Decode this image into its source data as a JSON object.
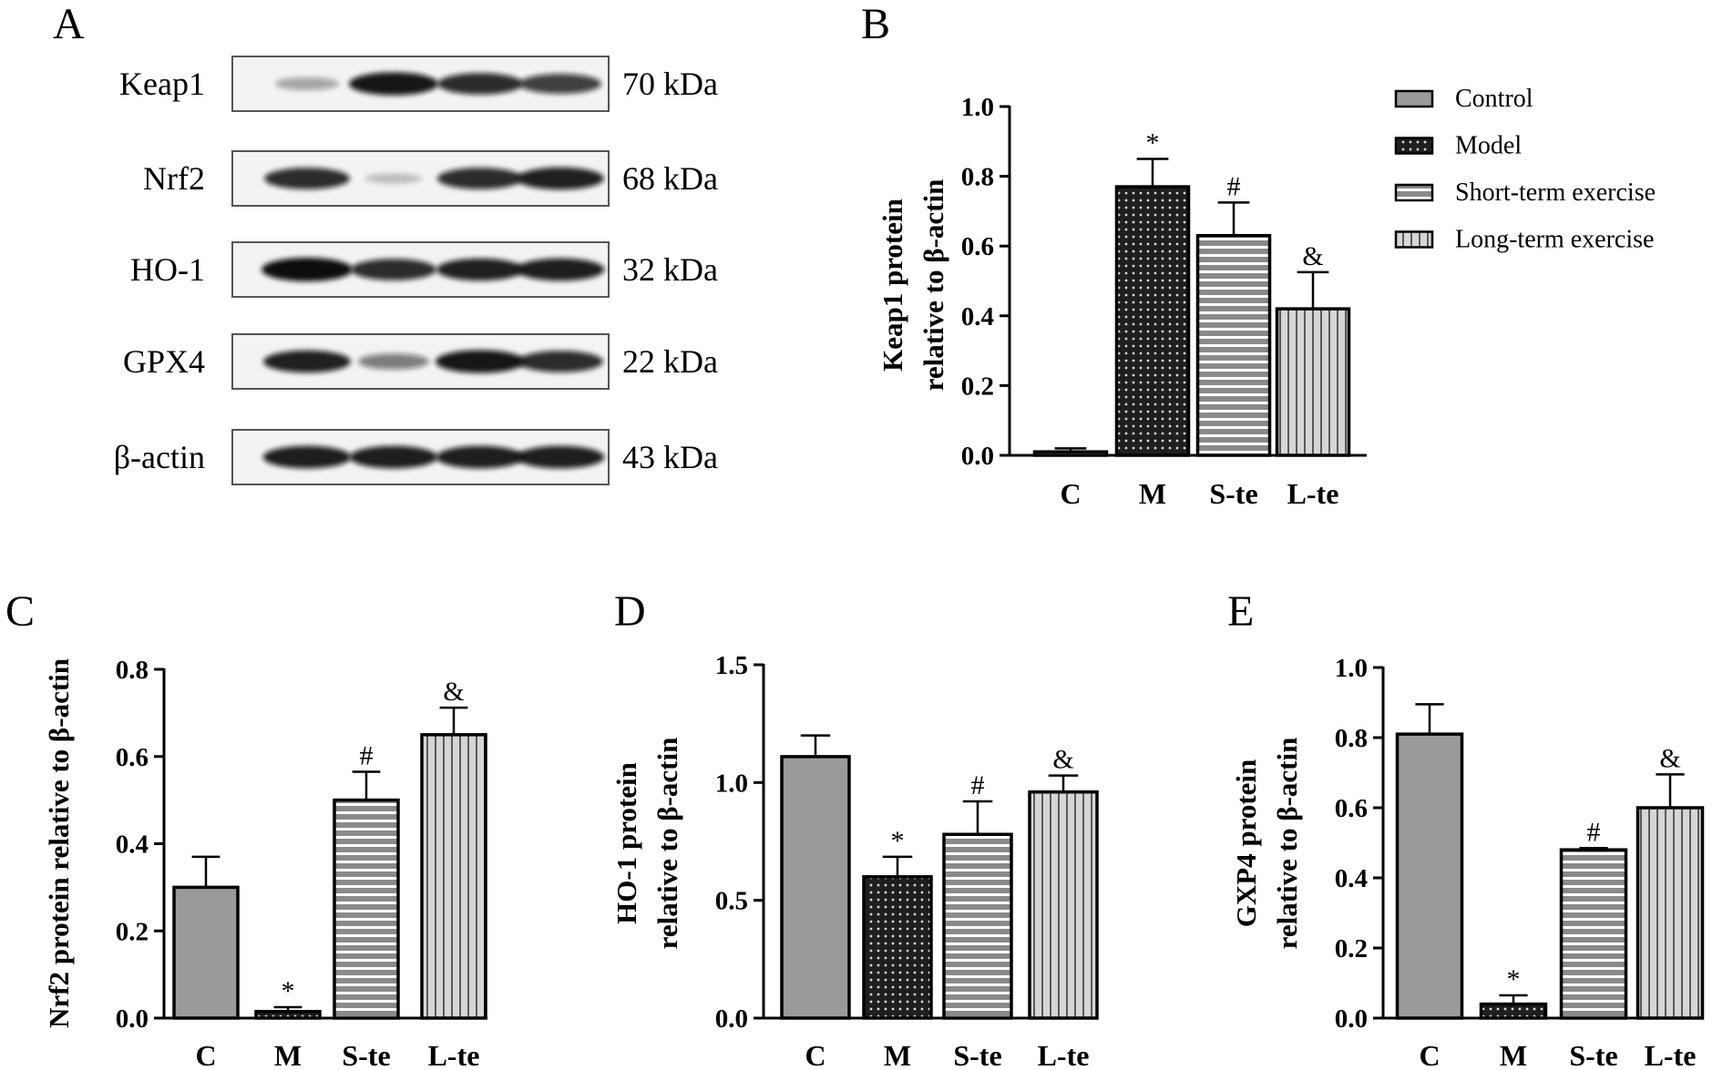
{
  "panels": {
    "A": "A",
    "B": "B",
    "C": "C",
    "D": "D",
    "E": "E"
  },
  "western_blot": {
    "rows": [
      {
        "protein": "Keap1",
        "weight": "70 kDa",
        "intensity": [
          0.25,
          0.95,
          0.85,
          0.75
        ]
      },
      {
        "protein": "Nrf2",
        "weight": "68 kDa",
        "intensity": [
          0.85,
          0.08,
          0.85,
          0.9
        ]
      },
      {
        "protein": "HO-1",
        "weight": "32 kDa",
        "intensity": [
          1.0,
          0.85,
          0.9,
          0.92
        ]
      },
      {
        "protein": "GPX4",
        "weight": "22 kDa",
        "intensity": [
          0.9,
          0.45,
          0.95,
          0.85
        ]
      },
      {
        "protein": "β-actin",
        "weight": "43 kDa",
        "intensity": [
          0.92,
          0.92,
          0.92,
          0.92
        ]
      }
    ]
  },
  "legend": {
    "entries": [
      {
        "label": "Control",
        "pattern": "solid"
      },
      {
        "label": "Model",
        "pattern": "dots"
      },
      {
        "label": "Short-term exercise",
        "pattern": "hlines"
      },
      {
        "label": "Long-term exercise",
        "pattern": "vlines"
      }
    ]
  },
  "chart_data": [
    {
      "panel": "B",
      "type": "bar",
      "categories": [
        "C",
        "M",
        "S-te",
        "L-te"
      ],
      "values": [
        0.01,
        0.77,
        0.63,
        0.42
      ],
      "errors": [
        0.01,
        0.08,
        0.095,
        0.105
      ],
      "significance": [
        "",
        "*",
        "#",
        "&"
      ],
      "ylabel_lines": [
        "Keap1 protein",
        "relative to β-actin"
      ],
      "ylim": [
        0,
        1.0
      ],
      "yticks": [
        "0.0",
        "0.2",
        "0.4",
        "0.6",
        "0.8",
        "1.0"
      ],
      "ytick_values": [
        0,
        0.2,
        0.4,
        0.6,
        0.8,
        1.0
      ]
    },
    {
      "panel": "C",
      "type": "bar",
      "categories": [
        "C",
        "M",
        "S-te",
        "L-te"
      ],
      "values": [
        0.3,
        0.015,
        0.5,
        0.65
      ],
      "errors": [
        0.07,
        0.01,
        0.065,
        0.062
      ],
      "significance": [
        "",
        "*",
        "#",
        "&"
      ],
      "ylabel_lines": [
        "Nrf2 protein relative to β-actin"
      ],
      "ylim": [
        0,
        0.8
      ],
      "yticks": [
        "0.0",
        "0.2",
        "0.4",
        "0.6",
        "0.8"
      ],
      "ytick_values": [
        0,
        0.2,
        0.4,
        0.6,
        0.8
      ]
    },
    {
      "panel": "D",
      "type": "bar",
      "categories": [
        "C",
        "M",
        "S-te",
        "L-te"
      ],
      "values": [
        1.11,
        0.6,
        0.78,
        0.96
      ],
      "errors": [
        0.09,
        0.085,
        0.14,
        0.07
      ],
      "significance": [
        "",
        "*",
        "#",
        "&"
      ],
      "ylabel_lines": [
        "HO-1 protein",
        "relative to β-actin"
      ],
      "ylim": [
        0,
        1.5
      ],
      "yticks": [
        "0.0",
        "0.5",
        "1.0",
        "1.5"
      ],
      "ytick_values": [
        0,
        0.5,
        1.0,
        1.5
      ]
    },
    {
      "panel": "E",
      "type": "bar",
      "categories": [
        "C",
        "M",
        "S-te",
        "L-te"
      ],
      "values": [
        0.81,
        0.04,
        0.48,
        0.6
      ],
      "errors": [
        0.085,
        0.025,
        0.005,
        0.095
      ],
      "significance": [
        "",
        "*",
        "#",
        "&"
      ],
      "ylabel_lines": [
        "GXP4 protein",
        "relative to β-actin"
      ],
      "ylim": [
        0,
        1.0
      ],
      "yticks": [
        "0.0",
        "0.2",
        "0.4",
        "0.6",
        "0.8",
        "1.0"
      ],
      "ytick_values": [
        0,
        0.2,
        0.4,
        0.6,
        0.8,
        1.0
      ]
    }
  ],
  "colors": {
    "control": "#9a9a9a",
    "dark": "#1f1f1f",
    "light_fill": "#dcdcdc",
    "band": "#111111",
    "blot_bg": "#f3f3f3"
  }
}
